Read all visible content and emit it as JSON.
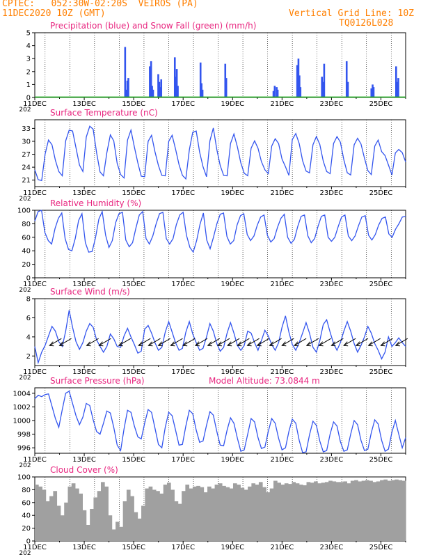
{
  "header": {
    "line1_left": "CPTEC:   052:30W-02:20S  VEIROS (PA)",
    "line2_left": "11DEC2020 10Z (GMT)",
    "line1_right": "Vertical Grid Line: 10Z",
    "line2_right": "TQ0126L028"
  },
  "colors": {
    "header": "#ff7f00",
    "title": "#e8257f",
    "series": "#3355ee",
    "snow": "#22aa22",
    "cloud": "#a0a0a0",
    "wind_arrow": "#000000"
  },
  "x_axis": {
    "tick_labels": [
      "11DEC",
      "13DEC",
      "15DEC",
      "17DEC",
      "19DEC",
      "21DEC",
      "23DEC",
      "25DEC"
    ],
    "year_fragment": "202"
  },
  "chart_data": [
    {
      "type": "bar",
      "key": "precip",
      "title": "Precipitation (blue) and Snow Fall (green) (mm/h)",
      "ylim": [
        0,
        5
      ],
      "yticks": [
        "0",
        "1",
        "2",
        "3",
        "4",
        "5"
      ],
      "x_unit": "days since 11DEC 00Z",
      "series": [
        {
          "name": "precipitation",
          "x": [
            3.66,
            3.71,
            3.75,
            3.79,
            4.66,
            4.71,
            4.75,
            4.79,
            5.0,
            5.04,
            5.08,
            5.12,
            5.67,
            5.71,
            5.75,
            5.79,
            6.71,
            6.75,
            6.79,
            7.71,
            7.75,
            9.66,
            9.71,
            9.79,
            9.83,
            10.62,
            10.67,
            10.71,
            10.75,
            11.62,
            11.67,
            11.71,
            12.62,
            12.67,
            13.62,
            13.67,
            13.71,
            14.62,
            14.67,
            14.71
          ],
          "values": [
            3.9,
            0.6,
            1.3,
            1.5,
            2.4,
            2.8,
            0.9,
            0.6,
            1.8,
            1.2,
            0.8,
            1.4,
            3.1,
            1.6,
            2.2,
            0.9,
            2.7,
            1.1,
            0.6,
            2.6,
            1.5,
            0.5,
            0.9,
            0.8,
            0.6,
            2.5,
            3.0,
            1.7,
            0.8,
            1.6,
            1.2,
            2.6,
            2.8,
            1.2,
            0.7,
            1.0,
            0.8,
            2.4,
            1.2,
            1.5
          ]
        },
        {
          "name": "snow fall",
          "values": [
            0
          ]
        }
      ]
    },
    {
      "type": "line",
      "key": "temperature",
      "title": "Surface Temperature (nC)",
      "ylim": [
        19.5,
        35
      ],
      "yticks": [
        "21",
        "24",
        "27",
        "30",
        "33"
      ],
      "series": [
        {
          "name": "temperature",
          "values": [
            23.4,
            21.1,
            20.9,
            27.0,
            30.3,
            29.2,
            25.6,
            23.0,
            22.0,
            30.1,
            32.6,
            32.4,
            28.5,
            24.5,
            23.0,
            31.0,
            33.5,
            32.8,
            27.4,
            22.9,
            22.0,
            27.4,
            31.5,
            30.1,
            24.9,
            22.3,
            21.5,
            30.3,
            32.6,
            28.7,
            25.0,
            21.9,
            21.8,
            30.0,
            31.4,
            27.6,
            24.4,
            22.1,
            22.0,
            30.0,
            31.4,
            28.2,
            24.6,
            22.1,
            21.3,
            28.0,
            32.1,
            32.4,
            27.5,
            24.1,
            21.8,
            30.1,
            33.1,
            28.1,
            24.4,
            22.1,
            22.0,
            29.5,
            31.7,
            28.7,
            25.0,
            22.6,
            22.0,
            28.4,
            30.1,
            28.4,
            25.3,
            23.4,
            22.5,
            28.9,
            30.6,
            29.5,
            25.9,
            24.1,
            22.1,
            30.4,
            31.8,
            29.5,
            25.5,
            23.1,
            22.7,
            29.2,
            31.1,
            29.3,
            25.4,
            23.0,
            22.5,
            29.5,
            31.1,
            29.8,
            25.7,
            22.7,
            22.2,
            29.2,
            30.7,
            29.4,
            26.1,
            23.2,
            22.3,
            28.9,
            30.3,
            27.6,
            26.7,
            24.5,
            22.2,
            27.3,
            28.1,
            27.4,
            25.2
          ]
        }
      ]
    },
    {
      "type": "line",
      "key": "humidity",
      "title": "Relative Humidity (%)",
      "ylim": [
        0,
        100
      ],
      "yticks": [
        "0",
        "20",
        "40",
        "60",
        "80",
        "100"
      ],
      "series": [
        {
          "name": "relative humidity",
          "values": [
            84,
            98,
            100,
            67,
            55,
            50,
            73,
            88,
            96,
            58,
            42,
            40,
            58,
            85,
            95,
            52,
            38,
            39,
            59,
            87,
            98,
            63,
            45,
            55,
            82,
            95,
            97,
            56,
            46,
            52,
            74,
            93,
            98,
            58,
            50,
            62,
            80,
            95,
            97,
            58,
            50,
            58,
            79,
            93,
            97,
            63,
            45,
            38,
            55,
            79,
            96,
            56,
            43,
            60,
            80,
            94,
            96,
            61,
            50,
            55,
            78,
            92,
            95,
            64,
            55,
            62,
            78,
            90,
            93,
            63,
            53,
            58,
            75,
            88,
            94,
            60,
            51,
            57,
            76,
            91,
            93,
            62,
            52,
            58,
            76,
            91,
            93,
            60,
            54,
            60,
            76,
            90,
            93,
            62,
            55,
            62,
            77,
            90,
            92,
            63,
            56,
            64,
            78,
            88,
            90,
            65,
            60,
            72,
            80,
            90,
            91
          ]
        }
      ]
    },
    {
      "type": "line",
      "key": "wind",
      "title": "Surface Wind (m/s)",
      "ylim": [
        1,
        8
      ],
      "yticks": [
        "2",
        "4",
        "6",
        "8"
      ],
      "series": [
        {
          "name": "wind speed",
          "values": [
            3.0,
            1.3,
            2.4,
            3.1,
            4.1,
            5.1,
            4.6,
            3.5,
            3.0,
            4.6,
            6.8,
            5.0,
            3.5,
            2.7,
            3.4,
            4.6,
            5.4,
            5.0,
            3.7,
            3.0,
            2.4,
            3.0,
            4.3,
            3.8,
            3.0,
            2.9,
            4.1,
            4.9,
            4.0,
            3.2,
            2.3,
            2.5,
            4.8,
            5.2,
            4.4,
            3.4,
            2.6,
            2.9,
            4.5,
            5.6,
            4.5,
            3.4,
            2.6,
            2.8,
            4.5,
            5.6,
            4.3,
            3.4,
            2.6,
            2.8,
            4.0,
            5.4,
            4.6,
            3.3,
            2.5,
            2.9,
            4.4,
            5.5,
            4.4,
            3.1,
            2.6,
            3.1,
            4.6,
            4.4,
            3.4,
            2.6,
            3.6,
            4.7,
            4.1,
            3.2,
            2.6,
            3.4,
            5.0,
            6.2,
            4.5,
            3.2,
            2.6,
            3.4,
            4.4,
            5.5,
            4.4,
            2.9,
            2.4,
            3.6,
            5.3,
            5.8,
            4.5,
            3.3,
            2.6,
            3.4,
            4.6,
            5.6,
            4.6,
            3.3,
            2.4,
            3.1,
            4.0,
            5.1,
            4.4,
            3.3,
            2.6,
            1.7,
            2.4,
            4.0,
            3.0,
            3.4,
            3.9,
            3.4,
            3.0
          ]
        }
      ],
      "arrows_x": [
        0.6,
        1.0,
        2.1,
        2.6,
        3.4,
        4.2,
        4.6,
        5.0,
        5.5,
        6.0,
        6.5,
        7.0,
        7.4,
        7.8,
        8.2,
        8.6,
        9.0,
        9.5,
        10.0,
        10.5,
        11.0,
        11.5,
        12.0,
        12.5,
        13.0,
        13.5,
        14.0,
        14.6
      ]
    },
    {
      "type": "line",
      "key": "pressure",
      "title": "Surface Pressure (hPa)",
      "annotation": "Model Altitude: 73.0844 m",
      "ylim": [
        995.2,
        1004.8
      ],
      "yticks": [
        "996",
        "998",
        "1000",
        "1002",
        "1004"
      ],
      "series": [
        {
          "name": "pressure",
          "values": [
            1003.2,
            1003.7,
            1003.5,
            1003.8,
            1003.9,
            1002.1,
            1000.3,
            999.0,
            1001.6,
            1004.0,
            1004.3,
            1002.5,
            1000.7,
            999.4,
            1000.5,
            1002.5,
            1002.2,
            1000.1,
            998.4,
            998.0,
            999.6,
            1001.4,
            1001.1,
            999.0,
            996.4,
            995.6,
            998.8,
            1001.5,
            1001.2,
            999.2,
            997.6,
            997.3,
            999.6,
            1001.6,
            1001.2,
            998.9,
            996.5,
            996.0,
            999.0,
            1001.2,
            1000.7,
            998.6,
            996.4,
            996.5,
            999.2,
            1001.5,
            1001.0,
            998.6,
            996.8,
            997.0,
            999.3,
            1001.3,
            1000.8,
            998.4,
            996.4,
            996.3,
            998.6,
            1000.4,
            999.6,
            997.4,
            995.5,
            995.7,
            998.0,
            1000.3,
            999.8,
            997.5,
            995.9,
            996.1,
            998.4,
            1000.3,
            999.6,
            997.4,
            995.7,
            996.0,
            998.4,
            1000.2,
            999.6,
            997.1,
            995.3,
            995.4,
            997.9,
            999.9,
            999.3,
            997.0,
            995.4,
            995.6,
            998.0,
            999.8,
            999.2,
            996.9,
            995.5,
            995.7,
            998.0,
            1000.0,
            999.4,
            997.1,
            995.6,
            995.8,
            998.2,
            1000.1,
            999.5,
            997.1,
            995.5,
            995.8,
            998.3,
            1000.0,
            998.0,
            996.0,
            997.5
          ]
        }
      ]
    },
    {
      "type": "bar",
      "key": "cloud",
      "title": "Cloud Cover (%)",
      "ylim": [
        0,
        100
      ],
      "yticks": [
        "0",
        "20",
        "40",
        "60",
        "80",
        "100"
      ],
      "series": [
        {
          "name": "cloud cover",
          "values": [
            88,
            85,
            80,
            62,
            70,
            78,
            55,
            40,
            60,
            85,
            90,
            82,
            74,
            48,
            25,
            50,
            68,
            78,
            92,
            85,
            40,
            18,
            30,
            22,
            62,
            80,
            70,
            45,
            35,
            55,
            82,
            85,
            80,
            78,
            74,
            88,
            91,
            80,
            62,
            58,
            78,
            88,
            82,
            85,
            86,
            84,
            76,
            85,
            82,
            88,
            90,
            86,
            84,
            82,
            90,
            88,
            83,
            80,
            85,
            90,
            88,
            92,
            84,
            76,
            82,
            94,
            91,
            88,
            90,
            89,
            92,
            90,
            88,
            87,
            92,
            91,
            93,
            90,
            91,
            92,
            94,
            93,
            92,
            92,
            93,
            90,
            94,
            95,
            93,
            94,
            95,
            94,
            92,
            93,
            95,
            96,
            94,
            95,
            96,
            95,
            94
          ]
        }
      ]
    }
  ]
}
